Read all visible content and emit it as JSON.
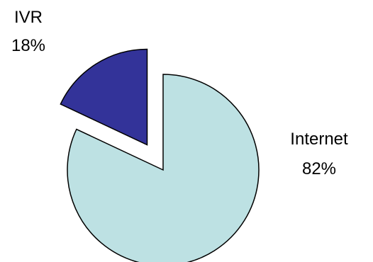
{
  "chart_data": {
    "type": "pie",
    "title": "",
    "categories": [
      "Internet",
      "IVR"
    ],
    "values": [
      82,
      18
    ],
    "value_labels": [
      "82%",
      "18%"
    ],
    "colors": [
      "#bde1e3",
      "#333399"
    ],
    "exploded": [
      false,
      true
    ],
    "start_angle_deg": 0,
    "direction": "clockwise",
    "outline_color": "#000000",
    "legend": "none"
  }
}
